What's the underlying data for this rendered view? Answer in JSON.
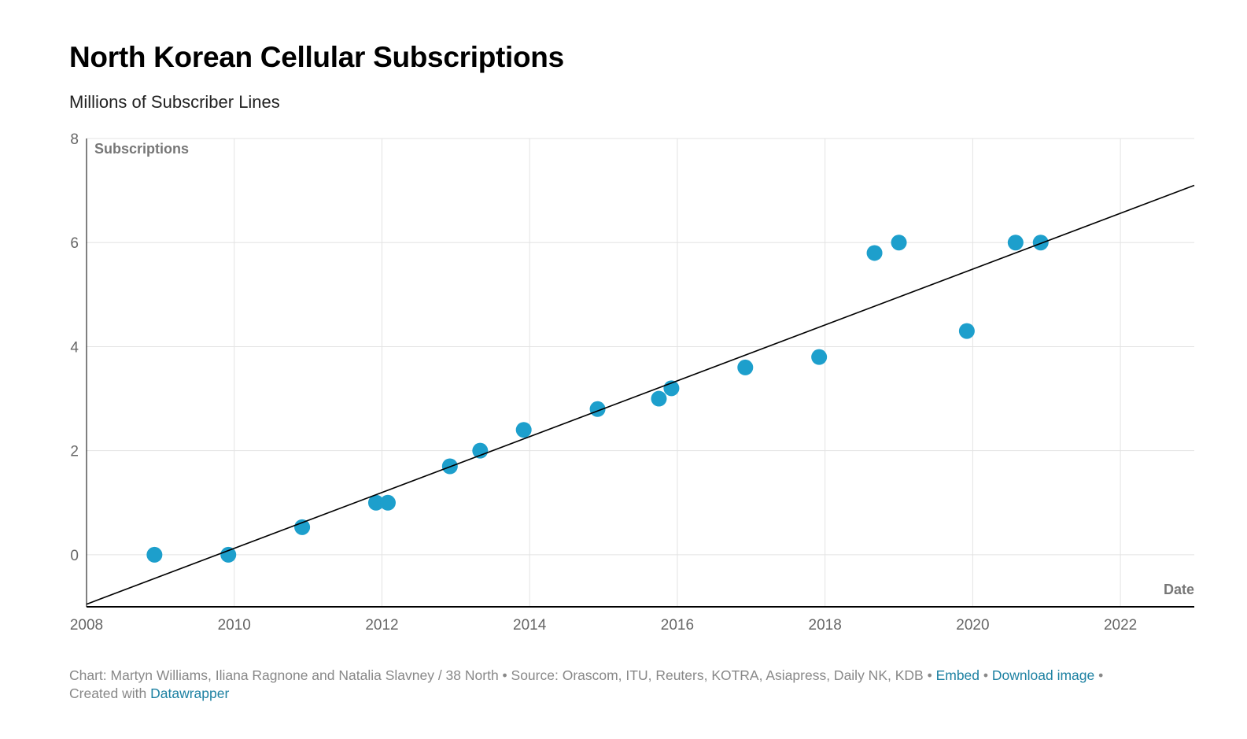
{
  "header": {
    "title": "North Korean Cellular Subscriptions",
    "subtitle": "Millions of Subscriber Lines"
  },
  "chart_data": {
    "type": "scatter",
    "title": "North Korean Cellular Subscriptions",
    "subtitle": "Millions of Subscriber Lines",
    "xlabel": "Date",
    "ylabel": "Subscriptions",
    "xlim": [
      2008,
      2023
    ],
    "ylim": [
      -1,
      8
    ],
    "x_ticks": [
      "2008",
      "2010",
      "2012",
      "2014",
      "2016",
      "2018",
      "2020",
      "2022"
    ],
    "y_ticks": [
      "0",
      "2",
      "4",
      "6",
      "8"
    ],
    "grid": true,
    "point_color": "#1d9fcc",
    "trendline_color": "#000000",
    "trendline": {
      "x": [
        2008,
        2023
      ],
      "y": [
        -0.95,
        7.1
      ]
    },
    "series": [
      {
        "points": [
          {
            "x": 2008.92,
            "y": 0.0
          },
          {
            "x": 2009.92,
            "y": 0.0
          },
          {
            "x": 2010.92,
            "y": 0.53
          },
          {
            "x": 2011.92,
            "y": 1.0
          },
          {
            "x": 2012.08,
            "y": 1.0
          },
          {
            "x": 2012.92,
            "y": 1.7
          },
          {
            "x": 2013.33,
            "y": 2.0
          },
          {
            "x": 2013.92,
            "y": 2.4
          },
          {
            "x": 2014.92,
            "y": 2.8
          },
          {
            "x": 2015.75,
            "y": 3.0
          },
          {
            "x": 2015.92,
            "y": 3.2
          },
          {
            "x": 2016.92,
            "y": 3.6
          },
          {
            "x": 2017.92,
            "y": 3.8
          },
          {
            "x": 2018.67,
            "y": 5.8
          },
          {
            "x": 2019.0,
            "y": 6.0
          },
          {
            "x": 2019.92,
            "y": 4.3
          },
          {
            "x": 2020.58,
            "y": 6.0
          },
          {
            "x": 2020.92,
            "y": 6.0
          }
        ]
      }
    ]
  },
  "footer": {
    "credit": "Chart: Martyn Williams, Iliana Ragnone and Natalia Slavney / 38 North",
    "sep1": " • ",
    "source": "Source: Orascom, ITU, Reuters, KOTRA, Asiapress, Daily NK, KDB",
    "sep2": " • ",
    "embed_label": "Embed",
    "sep3": " • ",
    "download_label": "Download image",
    "sep4": " • ",
    "created_with": "Created with ",
    "datawrapper_label": "Datawrapper"
  }
}
